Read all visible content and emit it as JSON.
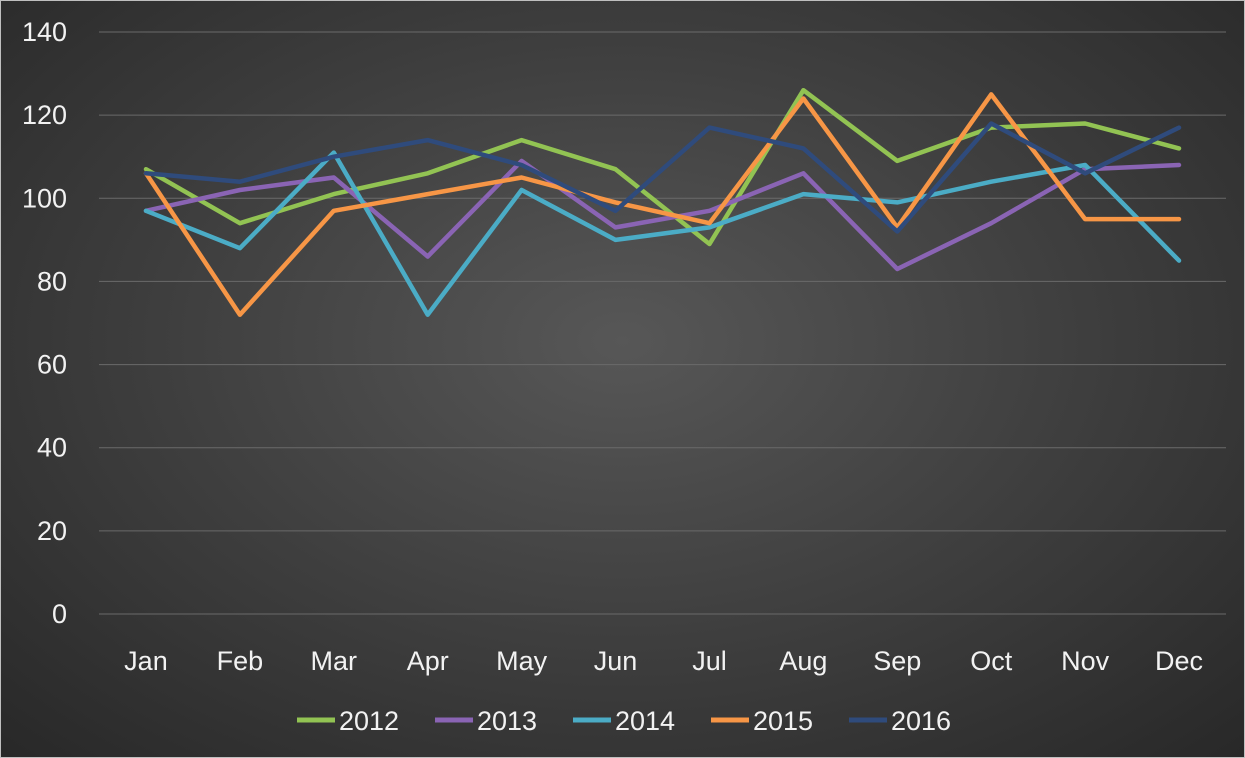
{
  "chart_data": {
    "type": "line",
    "title": "",
    "xlabel": "",
    "ylabel": "",
    "categories": [
      "Jan",
      "Feb",
      "Mar",
      "Apr",
      "May",
      "Jun",
      "Jul",
      "Aug",
      "Sep",
      "Oct",
      "Nov",
      "Dec"
    ],
    "ylim": [
      0,
      140
    ],
    "yticks": [
      "0",
      "20",
      "40",
      "60",
      "80",
      "100",
      "120",
      "140"
    ],
    "grid": true,
    "legend": "bottom",
    "series": [
      {
        "name": "2012",
        "color": "#92c353",
        "values": [
          107,
          94,
          101,
          106,
          114,
          107,
          89,
          126,
          109,
          117,
          118,
          112
        ]
      },
      {
        "name": "2013",
        "color": "#8a64b4",
        "values": [
          97,
          102,
          105,
          86,
          109,
          93,
          97,
          106,
          83,
          94,
          107,
          108
        ]
      },
      {
        "name": "2014",
        "color": "#4bacc6",
        "values": [
          97,
          88,
          111,
          72,
          102,
          90,
          93,
          101,
          99,
          104,
          108,
          85
        ]
      },
      {
        "name": "2015",
        "color": "#f79646",
        "values": [
          106,
          72,
          97,
          101,
          105,
          99,
          94,
          124,
          93,
          125,
          95,
          95
        ]
      },
      {
        "name": "2016",
        "color": "#2f4b7c",
        "values": [
          106,
          104,
          110,
          114,
          108,
          97,
          117,
          112,
          92,
          118,
          106,
          117
        ]
      }
    ]
  }
}
